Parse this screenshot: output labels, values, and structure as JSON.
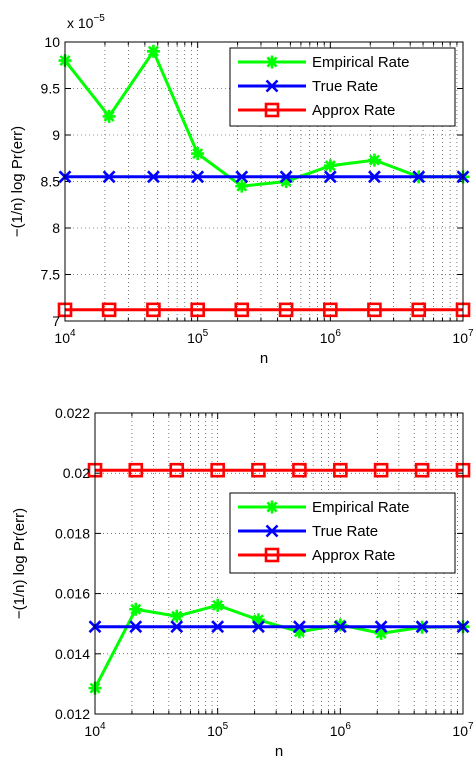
{
  "chart_data": [
    {
      "type": "line",
      "xscale": "log",
      "xlim": [
        10000,
        10000000
      ],
      "ylim": [
        7e-05,
        0.0001
      ],
      "y_multiplier": "x 10",
      "y_multiplier_exp": "−5",
      "grid": true,
      "legend_position": "top-right",
      "xlabel": "n",
      "ylabel": "−(1/n) log Pr(err)",
      "xticks": [
        10000,
        100000,
        1000000,
        10000000
      ],
      "xtick_bases": [
        "10",
        "10",
        "10",
        "10"
      ],
      "xtick_exps": [
        "4",
        "5",
        "6",
        "7"
      ],
      "yticks": [
        7e-05,
        7.5e-05,
        8e-05,
        8.5e-05,
        9e-05,
        9.5e-05,
        0.0001
      ],
      "ytick_labels": [
        "7",
        "7.5",
        "8",
        "8.5",
        "9",
        "9.5",
        "10"
      ],
      "x": [
        10000,
        21500,
        46400,
        100000,
        215000,
        464000,
        1000000,
        2150000,
        4640000,
        10000000
      ],
      "series": [
        {
          "name": "Empirical Rate",
          "color": "#00ff00",
          "marker": "asterisk",
          "values": [
            9.8e-05,
            9.2e-05,
            9.9e-05,
            8.8e-05,
            8.45e-05,
            8.5e-05,
            8.67e-05,
            8.73e-05,
            8.55e-05,
            8.55e-05
          ]
        },
        {
          "name": "True Rate",
          "color": "#0000ff",
          "marker": "x",
          "values": [
            8.55e-05,
            8.55e-05,
            8.55e-05,
            8.55e-05,
            8.55e-05,
            8.55e-05,
            8.55e-05,
            8.55e-05,
            8.55e-05,
            8.55e-05
          ]
        },
        {
          "name": "Approx Rate",
          "color": "#ff0000",
          "marker": "square",
          "values": [
            7.12e-05,
            7.12e-05,
            7.12e-05,
            7.12e-05,
            7.12e-05,
            7.12e-05,
            7.12e-05,
            7.12e-05,
            7.12e-05,
            7.12e-05
          ]
        }
      ]
    },
    {
      "type": "line",
      "xscale": "log",
      "xlim": [
        10000,
        10000000
      ],
      "ylim": [
        0.012,
        0.022
      ],
      "grid": true,
      "legend_position": "right",
      "xlabel": "n",
      "ylabel": "−(1/n) log Pr(err)",
      "xticks": [
        10000,
        100000,
        1000000,
        10000000
      ],
      "xtick_bases": [
        "10",
        "10",
        "10",
        "10"
      ],
      "xtick_exps": [
        "4",
        "5",
        "6",
        "7"
      ],
      "yticks": [
        0.012,
        0.014,
        0.016,
        0.018,
        0.02,
        0.022
      ],
      "ytick_labels": [
        "0.012",
        "0.014",
        "0.016",
        "0.018",
        "0.02",
        "0.022"
      ],
      "x": [
        10000,
        21500,
        46400,
        100000,
        215000,
        464000,
        1000000,
        2150000,
        4640000,
        10000000
      ],
      "series": [
        {
          "name": "Empirical Rate",
          "color": "#00ff00",
          "marker": "asterisk",
          "values": [
            0.01286,
            0.01548,
            0.01525,
            0.01561,
            0.01513,
            0.01473,
            0.01496,
            0.01468,
            0.01488,
            0.0149
          ]
        },
        {
          "name": "True Rate",
          "color": "#0000ff",
          "marker": "x",
          "values": [
            0.0149,
            0.0149,
            0.0149,
            0.0149,
            0.0149,
            0.0149,
            0.0149,
            0.0149,
            0.0149,
            0.0149
          ]
        },
        {
          "name": "Approx Rate",
          "color": "#ff0000",
          "marker": "square",
          "values": [
            0.0201,
            0.0201,
            0.0201,
            0.0201,
            0.0201,
            0.0201,
            0.0201,
            0.0201,
            0.0201,
            0.0201
          ]
        }
      ]
    }
  ]
}
